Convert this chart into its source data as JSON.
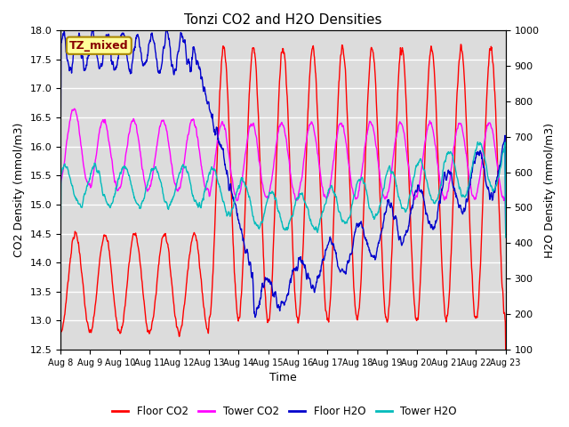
{
  "title": "Tonzi CO2 and H2O Densities",
  "xlabel": "Time",
  "ylabel_left": "CO2 Density (mmol/m3)",
  "ylabel_right": "H2O Density (mmol/m3)",
  "ylim_left": [
    12.5,
    18.0
  ],
  "ylim_right": [
    100,
    1000
  ],
  "annotation_text": "TZ_mixed",
  "annotation_bg": "#FFFF99",
  "annotation_border": "#AA8800",
  "colors": {
    "floor_co2": "#FF0000",
    "tower_co2": "#FF00FF",
    "floor_h2o": "#0000CC",
    "tower_h2o": "#00BBBB"
  },
  "legend_labels": [
    "Floor CO2",
    "Tower CO2",
    "Floor H2O",
    "Tower H2O"
  ],
  "xtick_labels": [
    "Aug 8",
    "Aug 9",
    "Aug 10",
    "Aug 11",
    "Aug 12",
    "Aug 13",
    "Aug 14",
    "Aug 15",
    "Aug 16",
    "Aug 17",
    "Aug 18",
    "Aug 19",
    "Aug 20",
    "Aug 21",
    "Aug 22",
    "Aug 23"
  ],
  "yticks_left": [
    12.5,
    13.0,
    13.5,
    14.0,
    14.5,
    15.0,
    15.5,
    16.0,
    16.5,
    17.0,
    17.5,
    18.0
  ],
  "yticks_right": [
    100,
    200,
    300,
    400,
    500,
    600,
    700,
    800,
    900,
    1000
  ],
  "plot_bg": "#DCDCDC",
  "grid_color": "#FFFFFF"
}
